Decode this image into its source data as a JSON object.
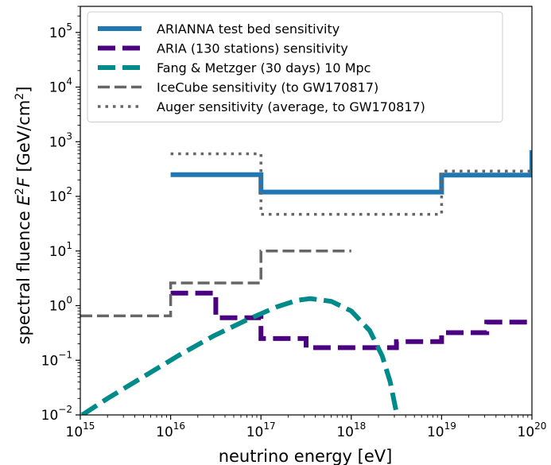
{
  "chart_data": {
    "type": "line",
    "xscale": "log",
    "yscale": "log",
    "xlim": [
      1000000000000000.0,
      1e+20
    ],
    "ylim": [
      0.01,
      300000
    ],
    "xlabel": "neutrino energy [eV]",
    "ylabel": {
      "prefix": "spectral fluence ",
      "var1": "E",
      "sup": "2",
      "var2": "F",
      "unit_open": " [GeV/cm",
      "unit_sup": "2",
      "unit_close": "]"
    },
    "grid": false,
    "legend_placement": "top-left",
    "x_ticks": [
      {
        "value": 1000000000000000.0,
        "base": "10",
        "exp": "15"
      },
      {
        "value": 1e+16,
        "base": "10",
        "exp": "16"
      },
      {
        "value": 1e+17,
        "base": "10",
        "exp": "17"
      },
      {
        "value": 1e+18,
        "base": "10",
        "exp": "18"
      },
      {
        "value": 1e+19,
        "base": "10",
        "exp": "19"
      },
      {
        "value": 1e+20,
        "base": "10",
        "exp": "20"
      }
    ],
    "y_ticks": [
      {
        "value": 0.01,
        "base": "10",
        "exp": "−2"
      },
      {
        "value": 0.1,
        "base": "10",
        "exp": "−1"
      },
      {
        "value": 1,
        "base": "10",
        "exp": "0"
      },
      {
        "value": 10,
        "base": "10",
        "exp": "1"
      },
      {
        "value": 100,
        "base": "10",
        "exp": "2"
      },
      {
        "value": 1000,
        "base": "10",
        "exp": "3"
      },
      {
        "value": 10000,
        "base": "10",
        "exp": "4"
      },
      {
        "value": 100000,
        "base": "10",
        "exp": "5"
      }
    ],
    "series": [
      {
        "name": "ARIANNA test bed sensitivity",
        "color": "#1f77b4",
        "style": "solid",
        "points": [
          [
            1e+16,
            250
          ],
          [
            1e+17,
            250
          ],
          [
            1e+17,
            120
          ],
          [
            1e+19,
            120
          ],
          [
            1e+19,
            245
          ],
          [
            1e+20,
            245
          ],
          [
            1e+20,
            700
          ]
        ]
      },
      {
        "name": "ARIA (130 stations) sensitivity",
        "color": "#4b0082",
        "style": "dashed",
        "points": [
          [
            1e+16,
            1.7
          ],
          [
            3.16e+16,
            1.7
          ],
          [
            3.16e+16,
            0.6
          ],
          [
            1e+17,
            0.6
          ],
          [
            1e+17,
            0.25
          ],
          [
            3.16e+17,
            0.25
          ],
          [
            3.16e+17,
            0.17
          ],
          [
            3.16e+18,
            0.17
          ],
          [
            3.16e+18,
            0.22
          ],
          [
            1e+19,
            0.22
          ],
          [
            1e+19,
            0.32
          ],
          [
            3.16e+19,
            0.32
          ],
          [
            3.16e+19,
            0.5
          ],
          [
            1e+20,
            0.5
          ]
        ]
      },
      {
        "name": "Fang & Metzger (30 days) 10 Mpc",
        "color": "#008b8b",
        "style": "dashed",
        "points": [
          [
            1050000000000000.0,
            0.01
          ],
          [
            2000000000000000.0,
            0.02
          ],
          [
            5000000000000000.0,
            0.05
          ],
          [
            1.2e+16,
            0.12
          ],
          [
            3e+16,
            0.28
          ],
          [
            7e+16,
            0.55
          ],
          [
            1.5e+17,
            0.95
          ],
          [
            2.5e+17,
            1.25
          ],
          [
            3.5e+17,
            1.35
          ],
          [
            6e+17,
            1.2
          ],
          [
            1e+18,
            0.8
          ],
          [
            1.6e+18,
            0.35
          ],
          [
            2.2e+18,
            0.12
          ],
          [
            2.7e+18,
            0.04
          ],
          [
            3.2e+18,
            0.01
          ]
        ]
      },
      {
        "name": "IceCube sensitivity (to GW170817)",
        "color": "#666666",
        "style": "longdash",
        "points": [
          [
            1000000000000000.0,
            0.65
          ],
          [
            1e+16,
            0.65
          ],
          [
            1e+16,
            2.6
          ],
          [
            1e+17,
            2.6
          ],
          [
            1e+17,
            10
          ],
          [
            1e+18,
            10
          ]
        ]
      },
      {
        "name": "Auger sensitivity (average, to GW170817)",
        "color": "#666666",
        "style": "dotted",
        "points": [
          [
            1e+16,
            600
          ],
          [
            1e+17,
            600
          ],
          [
            1e+17,
            47
          ],
          [
            1e+19,
            47
          ],
          [
            1e+19,
            290
          ],
          [
            1e+20,
            290
          ]
        ]
      }
    ]
  }
}
